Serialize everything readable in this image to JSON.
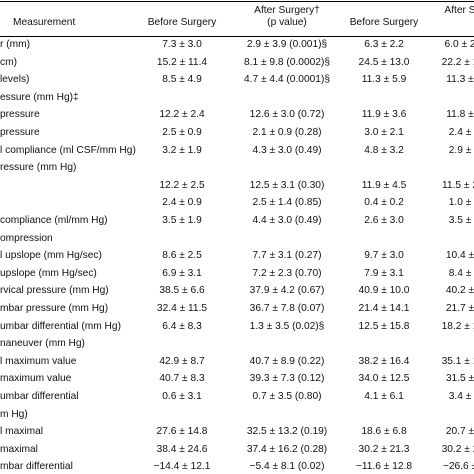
{
  "header": {
    "measurement": "Measurement",
    "before_1": "Before Surgery",
    "after_1_line1": "After Surgery†",
    "after_1_line2": "(p value)",
    "before_2": "Before Surgery",
    "after_2": "After S"
  },
  "rows": [
    {
      "label": "r (mm)",
      "b1": "7.3 ± 3.0",
      "a1": "2.9 ± 3.9 (0.001)§",
      "b2": "6.3 ± 2.2",
      "a2": "6.0 ± 2"
    },
    {
      "label": "cm)",
      "b1": "15.2 ± 11.4",
      "a1": "8.1 ± 9.8 (0.0002)§",
      "b2": "24.5 ± 13.0",
      "a2": "22.2 ± 1"
    },
    {
      "label": "levels)",
      "b1": "8.5 ± 4.9",
      "a1": "4.7 ± 4.4 (0.0001)§",
      "b2": "11.3 ± 5.9",
      "a2": "11.3 ±"
    },
    {
      "label": "essure (mm Hg)‡",
      "b1": "",
      "a1": "",
      "b2": "",
      "a2": ""
    },
    {
      "label": "pressure",
      "b1": "12.2 ± 2.4",
      "a1": "12.6 ± 3.0 (0.72)",
      "b2": "11.9 ± 3.6",
      "a2": "11.8 ±"
    },
    {
      "label": "pressure",
      "b1": "2.5 ± 0.9",
      "a1": "2.1 ± 0.9 (0.28)",
      "b2": "3.0 ± 2.1",
      "a2": "2.4 ±"
    },
    {
      "label": "l compliance (ml CSF/mm Hg)",
      "b1": "3.2 ± 1.9",
      "a1": "4.3 ± 3.0 (0.49)",
      "b2": "4.8 ± 3.2",
      "a2": "2.9 ±"
    },
    {
      "label": "ressure (mm Hg)",
      "b1": "",
      "a1": "",
      "b2": "",
      "a2": ""
    },
    {
      "label": "",
      "b1": "12.2 ± 2.5",
      "a1": "12.5 ± 3.1 (0.30)",
      "b2": "11.9 ± 4.5",
      "a2": "11.5 ± 2"
    },
    {
      "label": "",
      "b1": "2.4 ± 0.9",
      "a1": "2.5 ± 1.4 (0.85)",
      "b2": "0.4 ± 0.2",
      "a2": "1.0 ±"
    },
    {
      "label": "compliance (ml/mm Hg)",
      "b1": "3.5 ± 1.9",
      "a1": "4.4 ± 3.0 (0.49)",
      "b2": "2.6 ± 3.0",
      "a2": "3.5 ±"
    },
    {
      "label": "ompression",
      "b1": "",
      "a1": "",
      "b2": "",
      "a2": ""
    },
    {
      "label": "l upslope (mm Hg/sec)",
      "b1": "8.6 ± 2.5",
      "a1": "7.7 ± 3.1 (0.27)",
      "b2": "9.7 ± 3.0",
      "a2": "10.4 ±"
    },
    {
      "label": "upslope (mm Hg/sec)",
      "b1": "6.9 ± 3.1",
      "a1": "7.2 ± 2.3 (0.70)",
      "b2": "7.9 ± 3.1",
      "a2": "8.4 ±"
    },
    {
      "label": "rvical pressure (mm Hg)",
      "b1": "38.5 ± 6.6",
      "a1": "37.9 ± 4.2 (0.67)",
      "b2": "40.9 ± 10.0",
      "a2": "40.2 ±"
    },
    {
      "label": "mbar pressure (mm Hg)",
      "b1": "32.4 ± 11.5",
      "a1": "36.7 ± 7.8 (0.07)",
      "b2": "21.4 ± 14.1",
      "a2": "21.7 ±"
    },
    {
      "label": "umbar differential (mm Hg)",
      "b1": "6.4 ± 8.3",
      "a1": "1.3 ± 3.5 (0.02)§",
      "b2": "12.5 ± 15.8",
      "a2": "18.2 ± 1"
    },
    {
      "label": "naneuver (mm Hg)",
      "b1": "",
      "a1": "",
      "b2": "",
      "a2": ""
    },
    {
      "label": "l maximum value",
      "b1": "42.9 ± 8.7",
      "a1": "40.7 ± 8.9 (0.22)",
      "b2": "38.2 ± 16.4",
      "a2": "35.1 ± 1"
    },
    {
      "label": "maximum value",
      "b1": "40.7 ± 8.3",
      "a1": "39.3 ± 7.3 (0.12)",
      "b2": "34.0 ± 12.5",
      "a2": "31.5 ±"
    },
    {
      "label": "umbar differential",
      "b1": "0.6 ± 3.1",
      "a1": "0.7 ± 3.5 (0.80)",
      "b2": "4.1 ± 6.1",
      "a2": "3.4 ±"
    },
    {
      "label": "m Hg)",
      "b1": "",
      "a1": "",
      "b2": "",
      "a2": ""
    },
    {
      "label": "l maximal",
      "b1": "27.6 ± 14.8",
      "a1": "32.5 ± 13.2 (0.19)",
      "b2": "18.6 ± 6.8",
      "a2": "20.7 ±"
    },
    {
      "label": "maximal",
      "b1": "38.4 ± 24.6",
      "a1": "37.4 ± 16.2 (0.28)",
      "b2": "30.2 ± 21.3",
      "a2": "30.2 ± 2"
    },
    {
      "label": "mbar differential",
      "b1": "−14.4 ± 12.1",
      "a1": "−5.4 ± 8.1 (0.02)",
      "b2": "−11.6 ± 12.8",
      "a2": "−26.6 ±"
    }
  ]
}
